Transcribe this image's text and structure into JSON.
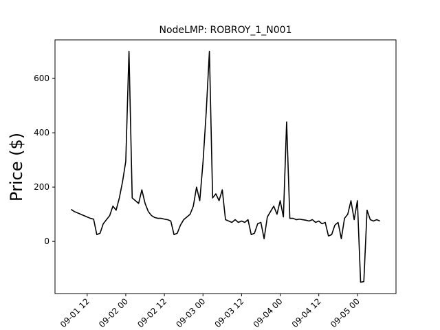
{
  "chart_data": {
    "type": "line",
    "title": "NodeLMP: ROBROY_1_N001",
    "y_label": "Price ($)",
    "color": "#000000",
    "x": [
      "09-01 07",
      "09-01 08",
      "09-01 09",
      "09-01 10",
      "09-01 11",
      "09-01 12",
      "09-01 13",
      "09-01 14",
      "09-01 15",
      "09-01 16",
      "09-01 17",
      "09-01 18",
      "09-01 19",
      "09-01 20",
      "09-01 21",
      "09-01 22",
      "09-01 23",
      "09-02 00",
      "09-02 01",
      "09-02 02",
      "09-02 03",
      "09-02 04",
      "09-02 05",
      "09-02 06",
      "09-02 07",
      "09-02 08",
      "09-02 09",
      "09-02 10",
      "09-02 11",
      "09-02 12",
      "09-02 13",
      "09-02 14",
      "09-02 15",
      "09-02 16",
      "09-02 17",
      "09-02 18",
      "09-02 19",
      "09-02 20",
      "09-02 21",
      "09-02 22",
      "09-02 23",
      "09-03 00",
      "09-03 01",
      "09-03 02",
      "09-03 03",
      "09-03 04",
      "09-03 05",
      "09-03 06",
      "09-03 07",
      "09-03 08",
      "09-03 09",
      "09-03 10",
      "09-03 11",
      "09-03 12",
      "09-03 13",
      "09-03 14",
      "09-03 15",
      "09-03 16",
      "09-03 17",
      "09-03 18",
      "09-03 19",
      "09-03 20",
      "09-03 21",
      "09-03 22",
      "09-03 23",
      "09-04 00",
      "09-04 01",
      "09-04 02",
      "09-04 03",
      "09-04 04",
      "09-04 05",
      "09-04 06",
      "09-04 07",
      "09-04 08",
      "09-04 09",
      "09-04 10",
      "09-04 11",
      "09-04 12",
      "09-04 13",
      "09-04 14",
      "09-04 15",
      "09-04 16",
      "09-04 17",
      "09-04 18",
      "09-04 19",
      "09-04 20",
      "09-04 21",
      "09-04 22",
      "09-04 23",
      "09-05 00",
      "09-05 01",
      "09-05 02",
      "09-05 03",
      "09-05 04",
      "09-05 05",
      "09-05 06",
      "09-05 07"
    ],
    "values": [
      118,
      110,
      105,
      100,
      95,
      90,
      85,
      82,
      25,
      30,
      65,
      80,
      95,
      130,
      115,
      160,
      220,
      295,
      700,
      160,
      150,
      140,
      190,
      140,
      110,
      95,
      88,
      85,
      85,
      82,
      80,
      75,
      25,
      30,
      60,
      80,
      90,
      100,
      130,
      200,
      150,
      290,
      475,
      700,
      160,
      175,
      150,
      190,
      80,
      75,
      70,
      80,
      70,
      75,
      70,
      80,
      25,
      30,
      65,
      70,
      10,
      90,
      110,
      130,
      100,
      150,
      90,
      440,
      85,
      85,
      80,
      82,
      80,
      78,
      75,
      80,
      70,
      75,
      65,
      70,
      20,
      25,
      60,
      70,
      10,
      85,
      100,
      150,
      80,
      150,
      -150,
      -148,
      115,
      80,
      75,
      80,
      75
    ],
    "xlim": [
      "09-01 02",
      "09-05 12"
    ],
    "xticks": [
      "09-01 12",
      "09-02 00",
      "09-02 12",
      "09-03 00",
      "09-03 12",
      "09-04 00",
      "09-04 12",
      "09-05 00"
    ],
    "ylim": [
      -192,
      742
    ],
    "yticks": [
      0,
      200,
      400,
      600
    ]
  }
}
